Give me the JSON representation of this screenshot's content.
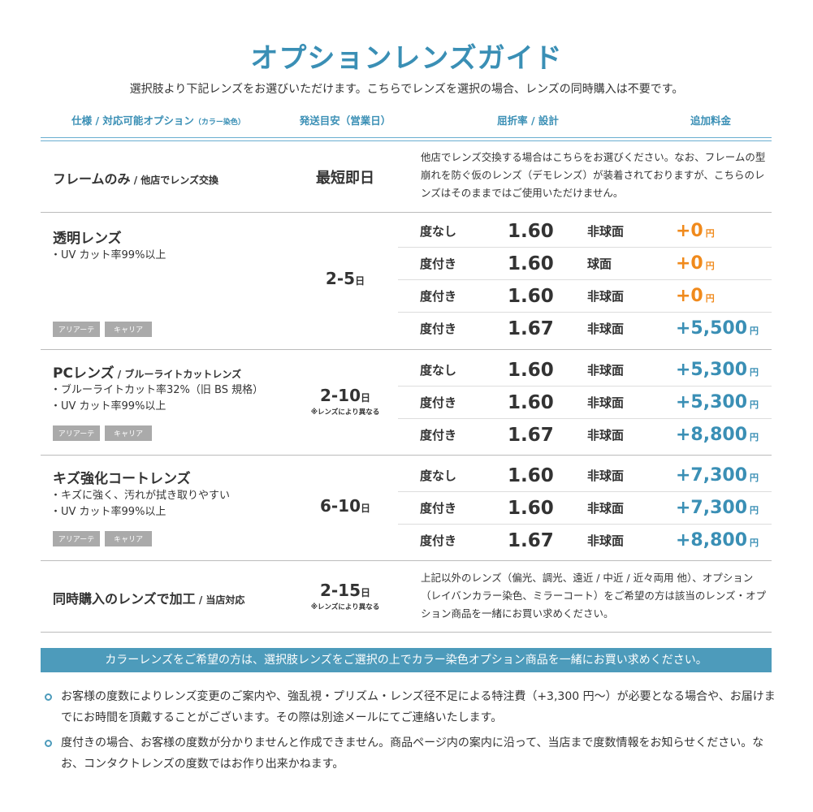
{
  "title": "オプションレンズガイド",
  "subtitle": "選択肢より下記レンズをお選びいただけます。こちらでレンズを選択の場合、レンズの同時購入は不要です。",
  "headers": {
    "spec": "仕様 / 対応可能オプション",
    "spec_note": "（カラー染色）",
    "ship": "発送目安（営業日）",
    "index": "屈折率 / 設計",
    "price": "追加料金"
  },
  "colors": {
    "accent": "#3a8fb5",
    "orange": "#f08a1c",
    "banner": "#4d9bbb"
  },
  "frame_only": {
    "name": "フレームのみ",
    "sub": " / 他店でレンズ交換",
    "ship": "最短即日",
    "desc": "他店でレンズ交換する場合はこちらをお選びください。なお、フレームの型崩れを防ぐ仮のレンズ（デモレンズ）が装着されておりますが、こちらのレンズはそのままではご使用いただけません。"
  },
  "groups": [
    {
      "name": "透明レンズ",
      "sub": "",
      "bullets": [
        "・UV カット率99%以上"
      ],
      "tags": [
        "アリアーテ",
        "キャリア"
      ],
      "ship_num": "2-5",
      "ship_unit": "日",
      "ship_note": "",
      "lenses": [
        {
          "type": "度なし",
          "index": "1.60",
          "design": "非球面",
          "price": "+0",
          "unit": "円",
          "free": true
        },
        {
          "type": "度付き",
          "index": "1.60",
          "design": "球面",
          "price": "+0",
          "unit": "円",
          "free": true
        },
        {
          "type": "度付き",
          "index": "1.60",
          "design": "非球面",
          "price": "+0",
          "unit": "円",
          "free": true
        },
        {
          "type": "度付き",
          "index": "1.67",
          "design": "非球面",
          "price": "+5,500",
          "unit": "円",
          "free": false
        }
      ]
    },
    {
      "name": "PCレンズ",
      "sub": " / ブルーライトカットレンズ",
      "bullets": [
        "・ブルーライトカット率32%（旧 BS 規格）",
        "・UV カット率99%以上"
      ],
      "tags": [
        "アリアーテ",
        "キャリア"
      ],
      "ship_num": "2-10",
      "ship_unit": "日",
      "ship_note": "※レンズにより異なる",
      "lenses": [
        {
          "type": "度なし",
          "index": "1.60",
          "design": "非球面",
          "price": "+5,300",
          "unit": "円",
          "free": false
        },
        {
          "type": "度付き",
          "index": "1.60",
          "design": "非球面",
          "price": "+5,300",
          "unit": "円",
          "free": false
        },
        {
          "type": "度付き",
          "index": "1.67",
          "design": "非球面",
          "price": "+8,800",
          "unit": "円",
          "free": false
        }
      ]
    },
    {
      "name": "キズ強化コートレンズ",
      "sub": "",
      "bullets": [
        "・キズに強く、汚れが拭き取りやすい",
        "・UV カット率99%以上"
      ],
      "tags": [
        "アリアーテ",
        "キャリア"
      ],
      "ship_num": "6-10",
      "ship_unit": "日",
      "ship_note": "",
      "lenses": [
        {
          "type": "度なし",
          "index": "1.60",
          "design": "非球面",
          "price": "+7,300",
          "unit": "円",
          "free": false
        },
        {
          "type": "度付き",
          "index": "1.60",
          "design": "非球面",
          "price": "+7,300",
          "unit": "円",
          "free": false
        },
        {
          "type": "度付き",
          "index": "1.67",
          "design": "非球面",
          "price": "+8,800",
          "unit": "円",
          "free": false
        }
      ]
    }
  ],
  "processing": {
    "name": "同時購入のレンズで加工",
    "sub": " / 当店対応",
    "ship_num": "2-15",
    "ship_unit": "日",
    "ship_note": "※レンズにより異なる",
    "desc": "上記以外のレンズ（偏光、調光、遠近 / 中近 / 近々両用 他）、オプション（レイバンカラー染色、ミラーコート）をご希望の方は該当のレンズ・オプション商品を一緒にお買い求めください。"
  },
  "banner": "カラーレンズをご希望の方は、選択肢レンズをご選択の上でカラー染色オプション商品を一緒にお買い求めください。",
  "notes": [
    "お客様の度数によりレンズ変更のご案内や、強乱視・プリズム・レンズ径不足による特注費（+3,300 円〜）が必要となる場合や、お届けまでにお時間を頂戴することがございます。その際は別途メールにてご連絡いたします。",
    "度付きの場合、お客様の度数が分かりませんと作成できません。商品ページ内の案内に沿って、当店まで度数情報をお知らせください。なお、コンタクトレンズの度数ではお作り出来かねます。"
  ]
}
